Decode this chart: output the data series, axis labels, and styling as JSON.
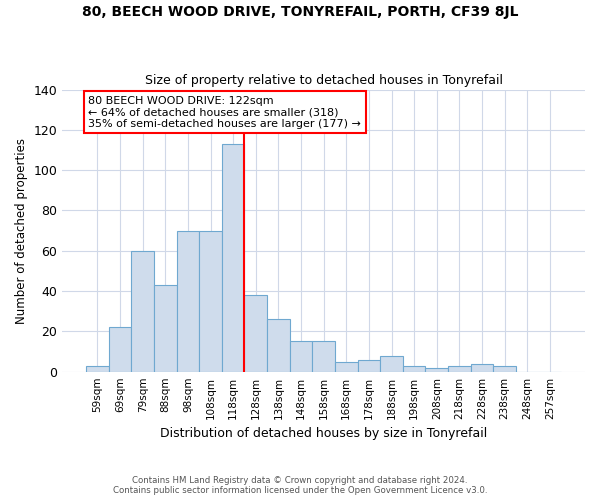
{
  "title": "80, BEECH WOOD DRIVE, TONYREFAIL, PORTH, CF39 8JL",
  "subtitle": "Size of property relative to detached houses in Tonyrefail",
  "xlabel": "Distribution of detached houses by size in Tonyrefail",
  "ylabel": "Number of detached properties",
  "footer1": "Contains HM Land Registry data © Crown copyright and database right 2024.",
  "footer2": "Contains public sector information licensed under the Open Government Licence v3.0.",
  "bin_labels": [
    "59sqm",
    "69sqm",
    "79sqm",
    "88sqm",
    "98sqm",
    "108sqm",
    "118sqm",
    "128sqm",
    "138sqm",
    "148sqm",
    "158sqm",
    "168sqm",
    "178sqm",
    "188sqm",
    "198sqm",
    "208sqm",
    "218sqm",
    "228sqm",
    "238sqm",
    "248sqm",
    "257sqm"
  ],
  "bar_values": [
    3,
    22,
    60,
    43,
    70,
    70,
    113,
    38,
    26,
    15,
    15,
    5,
    6,
    8,
    3,
    2,
    3,
    4,
    3,
    0,
    0
  ],
  "bar_color": "#cfdcec",
  "bar_edge_color": "#6fa8d0",
  "vline_x_index": 6.5,
  "annotation_title": "80 BEECH WOOD DRIVE: 122sqm",
  "annotation_line1": "← 64% of detached houses are smaller (318)",
  "annotation_line2": "35% of semi-detached houses are larger (177) →",
  "vline_color": "red",
  "ylim": [
    0,
    140
  ],
  "yticks": [
    0,
    20,
    40,
    60,
    80,
    100,
    120,
    140
  ],
  "grid_color": "#d0d8e8",
  "annotation_box_color": "white",
  "annotation_box_edge": "red"
}
